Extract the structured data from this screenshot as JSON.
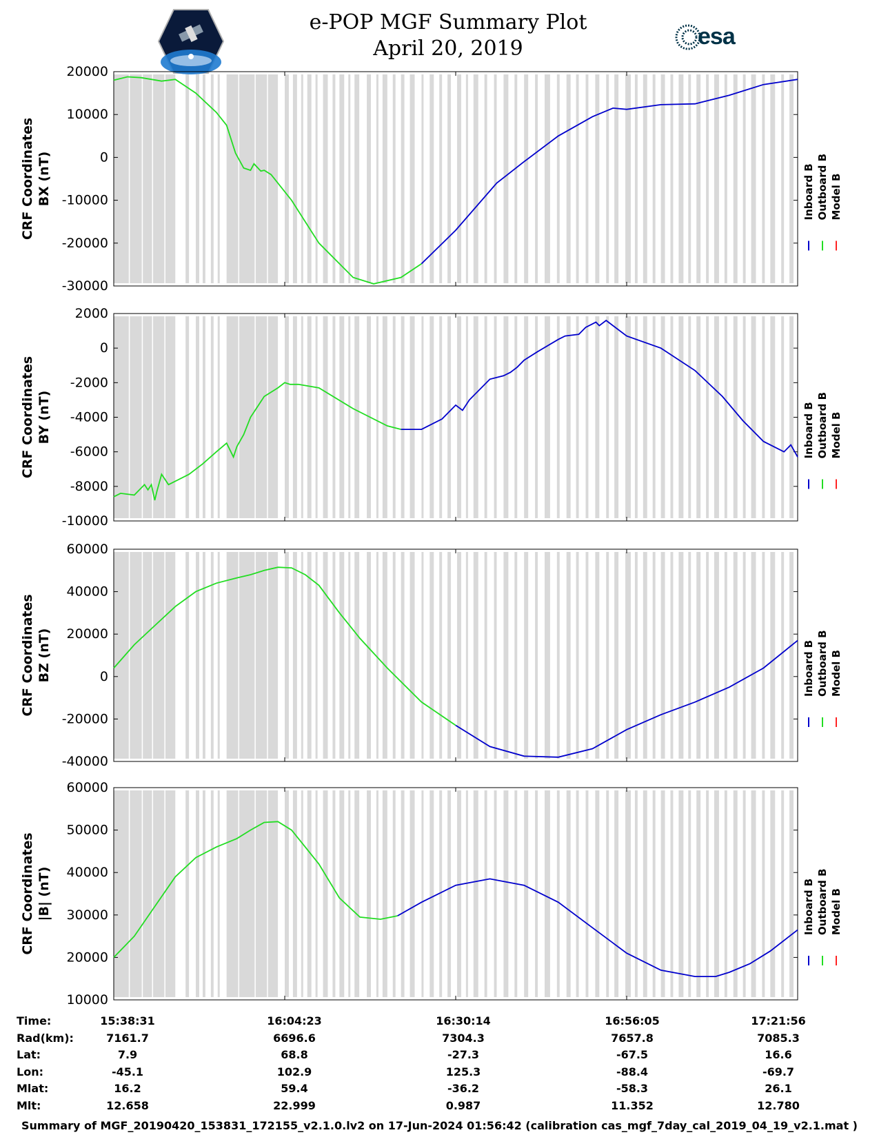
{
  "title": {
    "line1": "e-POP MGF Summary Plot",
    "line2": "April 20, 2019"
  },
  "logos": {
    "left": "CASSIOPE",
    "right": "esa"
  },
  "colors": {
    "inboard": "#0000cc",
    "outboard": "#22dd22",
    "model": "#ff2222",
    "gap": "#d9d9d9"
  },
  "legend": [
    "Inboard B",
    "Outboard B",
    "Model B"
  ],
  "time_ticks": [
    "15:38:31",
    "16:04:23",
    "16:30:14",
    "16:56:05",
    "17:21:56"
  ],
  "chart_data": [
    {
      "type": "line",
      "ylabel_line1": "CRF Coordinates",
      "ylabel_line2": "BX (nT)",
      "ylim": [
        -30000,
        20000
      ],
      "yticks": [
        20000,
        10000,
        0,
        -10000,
        -20000,
        -30000
      ],
      "ytick_labels": [
        "20000",
        "10000",
        "0",
        "-10000",
        "-20000",
        "-30000"
      ],
      "series": [
        {
          "name": "Outboard B",
          "x": [
            0,
            2,
            4,
            7,
            9,
            12,
            15,
            16.5,
            17.8,
            19,
            20,
            20.5,
            21.5,
            22,
            23,
            26,
            30,
            35,
            38,
            42,
            45
          ],
          "y": [
            18000,
            18800,
            18600,
            17800,
            18200,
            15000,
            10500,
            7500,
            1000,
            -2500,
            -3000,
            -1500,
            -3200,
            -3000,
            -4000,
            -10000,
            -20000,
            -28000,
            -29500,
            -28000,
            -24800
          ]
        },
        {
          "name": "Inboard B",
          "x": [
            45,
            50,
            56,
            60,
            65,
            70,
            73,
            75,
            80,
            85,
            90,
            95,
            100
          ],
          "y": [
            -24800,
            -17000,
            -6000,
            -1000,
            5000,
            9500,
            11500,
            11200,
            12300,
            12500,
            14500,
            17000,
            18200
          ]
        }
      ]
    },
    {
      "type": "line",
      "ylabel_line1": "CRF Coordinates",
      "ylabel_line2": "BY (nT)",
      "ylim": [
        -10000,
        2000
      ],
      "yticks": [
        2000,
        0,
        -2000,
        -4000,
        -6000,
        -8000,
        -10000
      ],
      "ytick_labels": [
        "2000",
        "0",
        "-2000",
        "-4000",
        "-6000",
        "-8000",
        "-10000"
      ],
      "series": [
        {
          "name": "Outboard B",
          "x": [
            0,
            1,
            3,
            4.5,
            5,
            5.5,
            6,
            6.3,
            7,
            8,
            9,
            11,
            13,
            15,
            16.5,
            17.5,
            18,
            19,
            20,
            21,
            22,
            24,
            25,
            25.8,
            27,
            30,
            35,
            40,
            42
          ],
          "y": [
            -8600,
            -8400,
            -8500,
            -7900,
            -8200,
            -7900,
            -8800,
            -8300,
            -7300,
            -7900,
            -7700,
            -7300,
            -6700,
            -6000,
            -5500,
            -6300,
            -5700,
            -5000,
            -4000,
            -3400,
            -2800,
            -2300,
            -2000,
            -2100,
            -2100,
            -2300,
            -3500,
            -4500,
            -4700
          ]
        },
        {
          "name": "Inboard B",
          "x": [
            42,
            45,
            48,
            50,
            51,
            52,
            55,
            57,
            58,
            59,
            60,
            62,
            65,
            66,
            68,
            69,
            70,
            70.5,
            71,
            72,
            73,
            75,
            80,
            85,
            89,
            92,
            95,
            98,
            99,
            100
          ],
          "y": [
            -4700,
            -4700,
            -4100,
            -3300,
            -3600,
            -3000,
            -1800,
            -1600,
            -1400,
            -1100,
            -700,
            -200,
            500,
            700,
            800,
            1200,
            1400,
            1500,
            1300,
            1600,
            1300,
            700,
            0,
            -1300,
            -2800,
            -4200,
            -5400,
            -6000,
            -5600,
            -6300
          ]
        }
      ]
    },
    {
      "type": "line",
      "ylabel_line1": "CRF Coordinates",
      "ylabel_line2": "BZ (nT)",
      "ylim": [
        -40000,
        60000
      ],
      "yticks": [
        60000,
        40000,
        20000,
        0,
        -20000,
        -40000
      ],
      "ytick_labels": [
        "60000",
        "40000",
        "20000",
        "0",
        "-20000",
        "-40000"
      ],
      "series": [
        {
          "name": "Outboard B",
          "x": [
            0,
            3,
            6,
            9,
            12,
            15,
            18,
            20,
            22,
            24,
            26,
            28,
            30,
            33,
            36,
            40,
            45,
            50
          ],
          "y": [
            4000,
            15000,
            24000,
            33000,
            40000,
            44000,
            46500,
            48000,
            50000,
            51500,
            51200,
            48000,
            43000,
            30000,
            18000,
            4000,
            -12000,
            -23000
          ]
        },
        {
          "name": "Inboard B",
          "x": [
            50,
            55,
            60,
            65,
            70,
            75,
            80,
            85,
            90,
            95,
            100
          ],
          "y": [
            -23000,
            -33000,
            -37500,
            -38000,
            -34000,
            -25000,
            -18000,
            -12000,
            -5000,
            4000,
            17000
          ]
        }
      ]
    },
    {
      "type": "line",
      "ylabel_line1": "CRF Coordinates",
      "ylabel_line2": "|B| (nT)",
      "ylim": [
        10000,
        60000
      ],
      "yticks": [
        60000,
        50000,
        40000,
        30000,
        20000,
        10000
      ],
      "ytick_labels": [
        "60000",
        "50000",
        "40000",
        "30000",
        "20000",
        "10000"
      ],
      "series": [
        {
          "name": "Outboard B",
          "x": [
            0,
            3,
            6,
            9,
            12,
            15,
            18,
            20,
            22,
            24,
            26,
            28,
            30,
            33,
            36,
            39,
            41.5
          ],
          "y": [
            20000,
            25000,
            32000,
            39000,
            43500,
            46000,
            48000,
            50000,
            51800,
            52000,
            50000,
            46000,
            42000,
            34000,
            29500,
            29000,
            29800
          ]
        },
        {
          "name": "Inboard B",
          "x": [
            41.5,
            45,
            50,
            55,
            60,
            65,
            70,
            75,
            80,
            85,
            88,
            90,
            93,
            96,
            100
          ],
          "y": [
            29800,
            33000,
            37000,
            38500,
            37000,
            33000,
            27000,
            21000,
            17000,
            15500,
            15500,
            16500,
            18500,
            21500,
            26500
          ]
        }
      ]
    }
  ],
  "info_table": {
    "rows": [
      {
        "label": "Time:",
        "values": [
          "15:38:31",
          "16:04:23",
          "16:30:14",
          "16:56:05",
          "17:21:56"
        ]
      },
      {
        "label": "Rad(km):",
        "values": [
          "7161.7",
          "6696.6",
          "7304.3",
          "7657.8",
          "7085.3"
        ]
      },
      {
        "label": "Lat:",
        "values": [
          "7.9",
          "68.8",
          "-27.3",
          "-67.5",
          "16.6"
        ]
      },
      {
        "label": "Lon:",
        "values": [
          "-45.1",
          "102.9",
          "125.3",
          "-88.4",
          "-69.7"
        ]
      },
      {
        "label": "Mlat:",
        "values": [
          "16.2",
          "59.4",
          "-36.2",
          "-58.3",
          "26.1"
        ]
      },
      {
        "label": "Mlt:",
        "values": [
          "12.658",
          "22.999",
          "0.987",
          "11.352",
          "12.780"
        ]
      }
    ]
  },
  "footer": "Summary of MGF_20190420_153831_172155_v2.1.0.lv2 on 17-Jun-2024 01:56:42 (calibration cas_mgf_7day_cal_2019_04_19_v2.1.mat )"
}
